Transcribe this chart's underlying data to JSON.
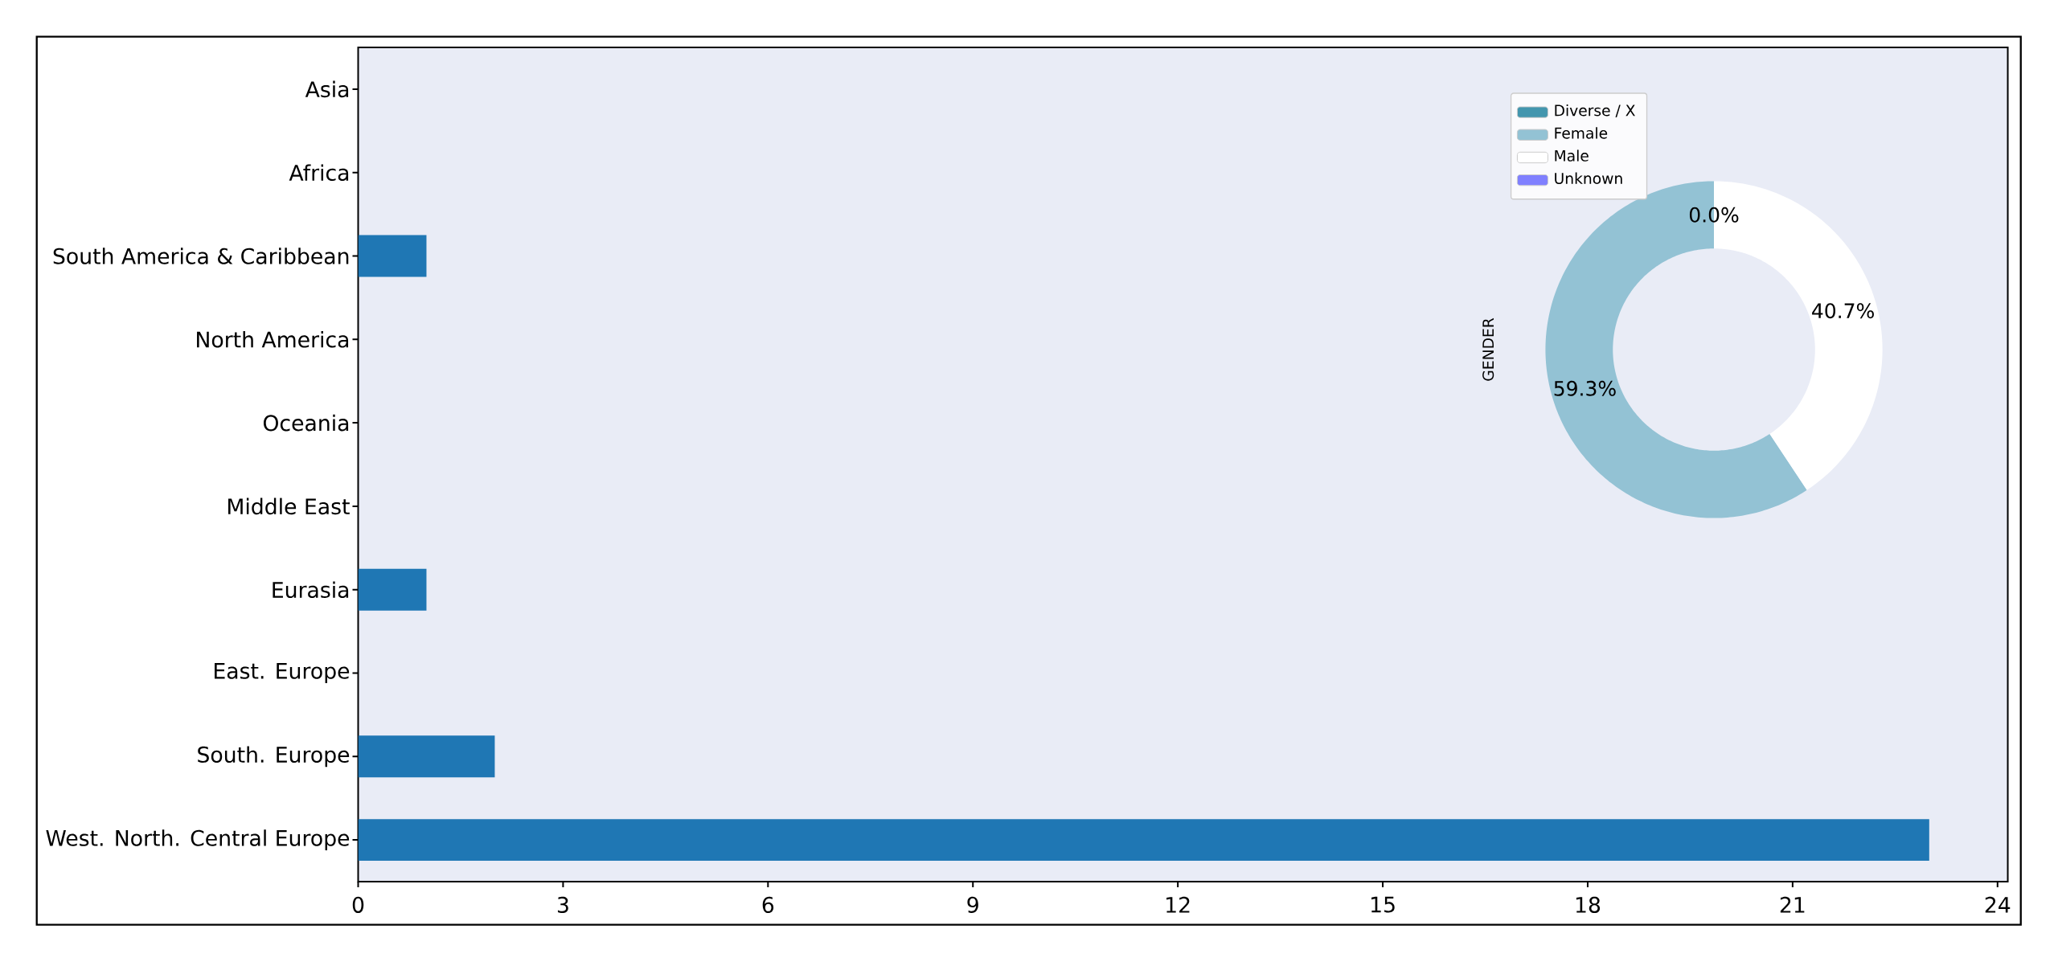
{
  "chart_data": [
    {
      "type": "bar",
      "orientation": "horizontal",
      "categories": [
        "Asia",
        "Africa",
        "South America & Caribbean",
        "North America",
        "Oceania",
        "Middle East",
        "Eurasia",
        "East. Europe",
        "South. Europe",
        "West. North. Central Europe"
      ],
      "values": [
        0,
        0,
        1,
        0,
        0,
        0,
        1,
        0,
        2,
        23
      ],
      "color": "#1f77b4",
      "xlim": [
        0,
        24.15
      ],
      "xticks": [
        0,
        3,
        6,
        9,
        12,
        15,
        18,
        21,
        24
      ]
    },
    {
      "type": "donut",
      "ylabel": "GENDER",
      "categories": [
        "Diverse / X",
        "Female",
        "Male",
        "Unknown"
      ],
      "values": [
        0,
        59.3,
        40.7,
        0
      ],
      "colors": [
        "#4396ae",
        "#93c2d4",
        "#ffffff",
        "#8080ff"
      ],
      "value_labels": [
        "0.0%",
        "59.3%",
        "40.7%",
        null
      ],
      "legend": "top left"
    }
  ]
}
